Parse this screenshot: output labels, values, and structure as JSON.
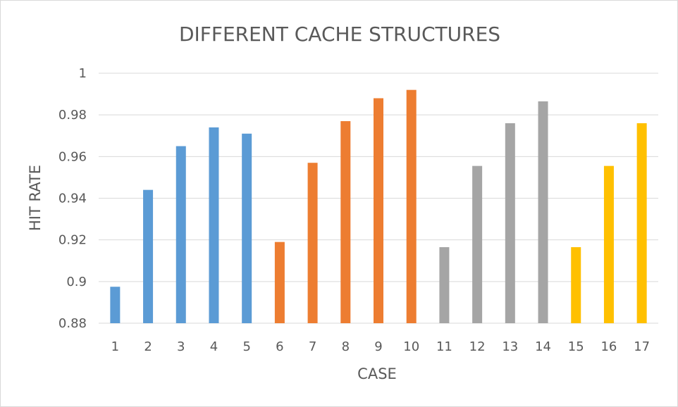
{
  "chart_data": {
    "type": "bar",
    "title": "DIFFERENT CACHE STRUCTURES",
    "xlabel": "CASE",
    "ylabel": "HIT RATE",
    "ylim": [
      0.88,
      1.0
    ],
    "yticks": [
      "0.88",
      "0.9",
      "0.92",
      "0.94",
      "0.96",
      "0.98",
      "1"
    ],
    "grid": true,
    "legend": "none",
    "categories": [
      "1",
      "2",
      "3",
      "4",
      "5",
      "6",
      "7",
      "8",
      "9",
      "10",
      "11",
      "12",
      "13",
      "14",
      "15",
      "16",
      "17"
    ],
    "values": [
      0.8975,
      0.944,
      0.965,
      0.974,
      0.971,
      0.919,
      0.957,
      0.977,
      0.988,
      0.992,
      0.9165,
      0.9555,
      0.976,
      0.9865,
      0.9165,
      0.9555,
      0.976
    ],
    "bar_colors": [
      "#5b9bd5",
      "#5b9bd5",
      "#5b9bd5",
      "#5b9bd5",
      "#5b9bd5",
      "#ed7d31",
      "#ed7d31",
      "#ed7d31",
      "#ed7d31",
      "#ed7d31",
      "#a5a5a5",
      "#a5a5a5",
      "#a5a5a5",
      "#a5a5a5",
      "#ffc000",
      "#ffc000",
      "#ffc000"
    ]
  }
}
